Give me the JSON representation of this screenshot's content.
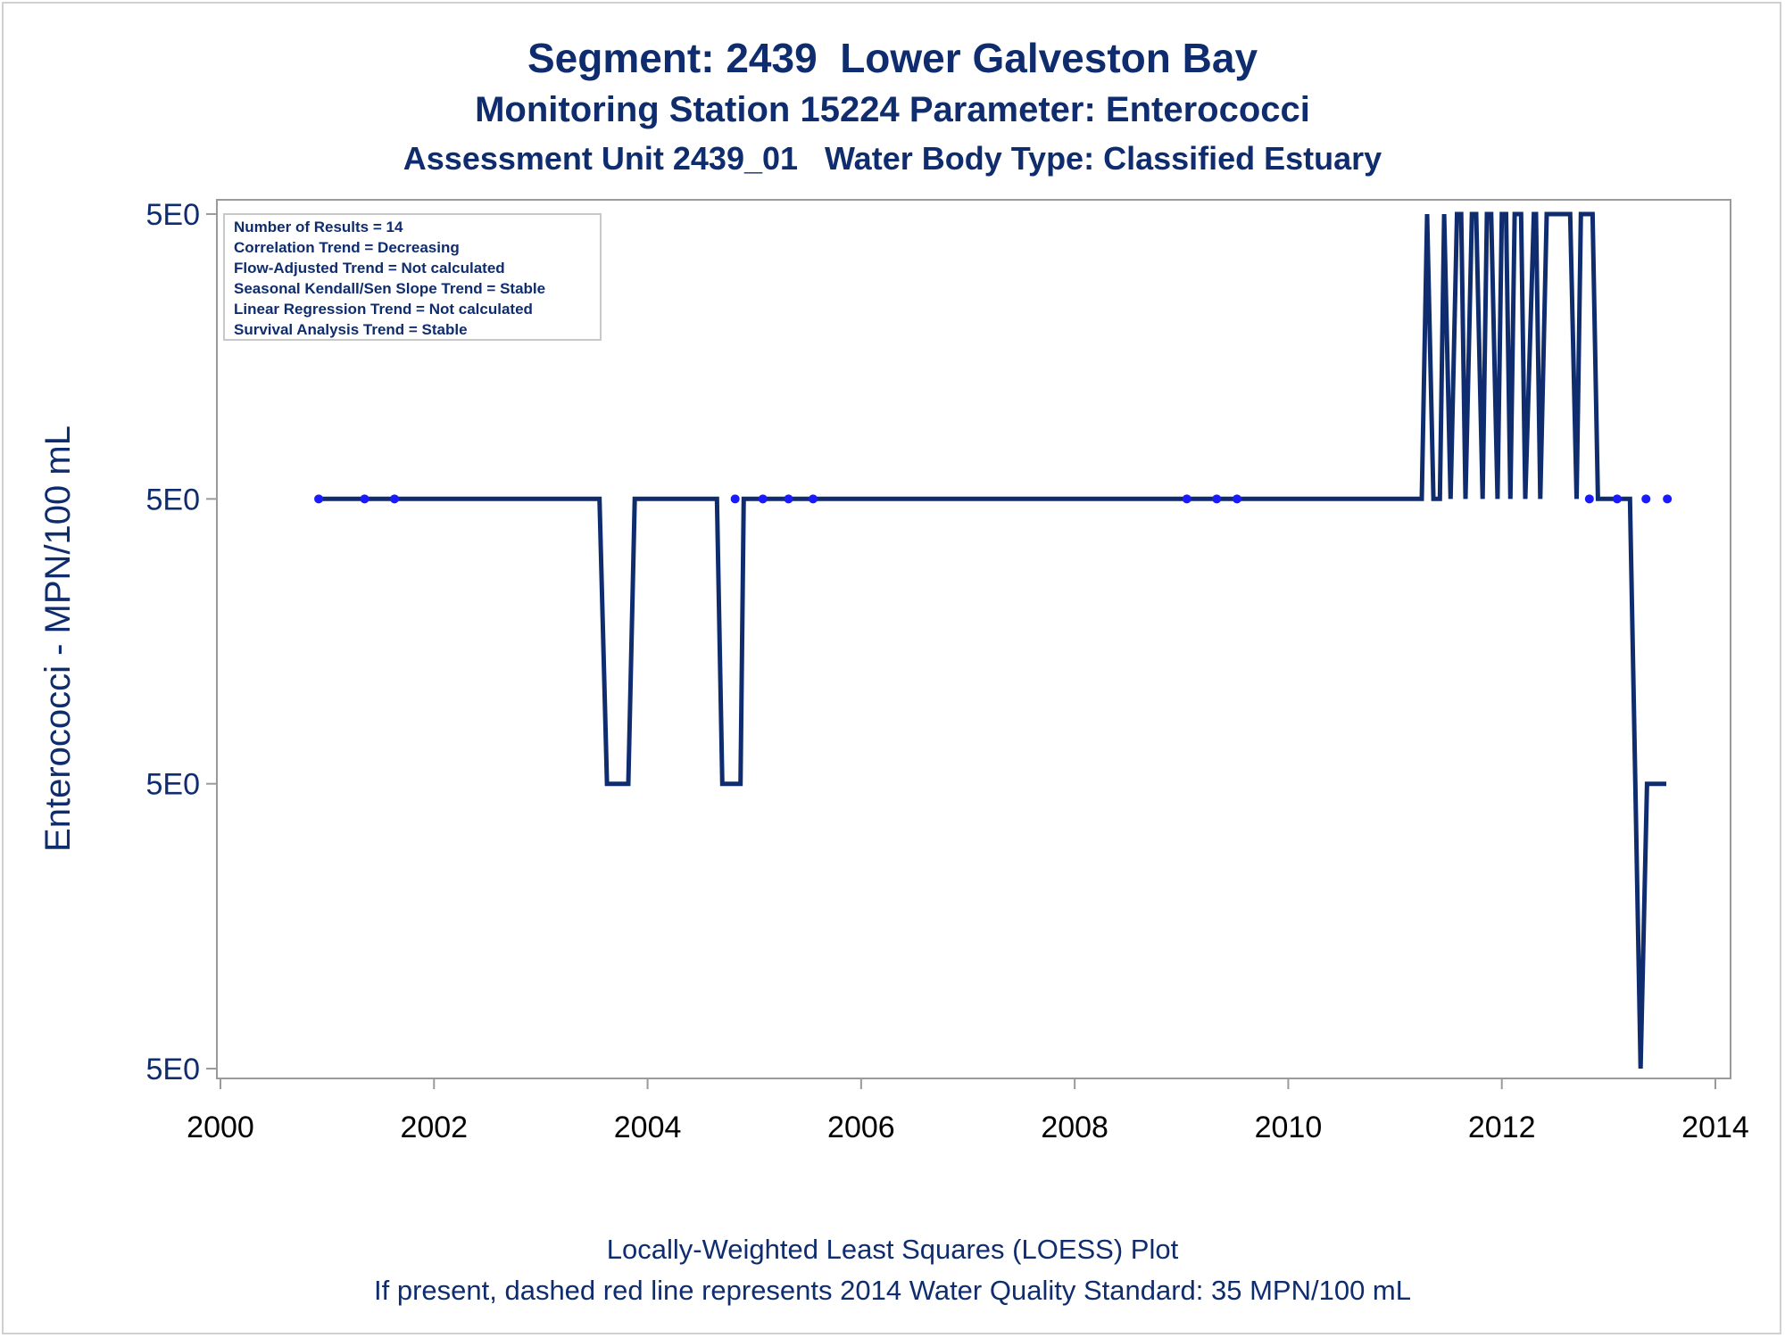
{
  "titles": [
    "Segment: 2439  Lower Galveston Bay",
    "Monitoring Station 15224 Parameter: Enterococci",
    "Assessment Unit 2439_01   Water Body Type: Classified Estuary"
  ],
  "footer": [
    "Locally-Weighted Least Squares (LOESS) Plot",
    "If present, dashed red line represents 2014 Water Quality Standard: 35 MPN/100 mL"
  ],
  "stats_box": [
    "Number of Results = 14",
    "Correlation Trend = Decreasing",
    "Flow-Adjusted Trend = Not calculated",
    "Seasonal Kendall/Sen Slope Trend = Stable",
    "Linear Regression Trend = Not calculated",
    "Survival Analysis Trend = Stable"
  ],
  "chart_data": {
    "type": "line",
    "title": "Segment: 2439  Lower Galveston Bay",
    "xlabel": "",
    "ylabel": "Enterococci - MPN/100 mL",
    "xlim": [
      2000,
      2014
    ],
    "x_ticks": [
      2000,
      2002,
      2004,
      2006,
      2008,
      2010,
      2012,
      2014
    ],
    "y_tick_labels": [
      "5E0",
      "5E0",
      "5E0",
      "5E0"
    ],
    "ylim": [
      0,
      3
    ],
    "y_tick_values": [
      0,
      1,
      2,
      3
    ],
    "grid": false,
    "colors": {
      "line": "#0f2d6e",
      "points": "#1a1aff",
      "text": "#0f2d6e"
    },
    "series": [
      {
        "type": "line",
        "x": [
          2000.92,
          2003.55,
          2003.62,
          2003.82,
          2003.88,
          2004.65,
          2004.7,
          2004.87,
          2004.9,
          2011.25,
          2011.3,
          2011.36,
          2011.42,
          2011.46,
          2011.52,
          2011.58,
          2011.62,
          2011.66,
          2011.72,
          2011.76,
          2011.82,
          2011.86,
          2011.9,
          2011.96,
          2012.0,
          2012.04,
          2012.08,
          2012.12,
          2012.18,
          2012.22,
          2012.3,
          2012.32,
          2012.36,
          2012.42,
          2012.64,
          2012.7,
          2012.74,
          2012.85,
          2012.9,
          2012.94,
          2013.2,
          2013.25,
          2013.3,
          2013.36,
          2013.44,
          2013.54
        ],
        "y": [
          2,
          2,
          1,
          1,
          2,
          2,
          1,
          1,
          2,
          2,
          3,
          2,
          2,
          3,
          2,
          3,
          3,
          2,
          3,
          3,
          2,
          3,
          3,
          2,
          3,
          3,
          2,
          3,
          3,
          2,
          3,
          3,
          2,
          3,
          3,
          2,
          3,
          3,
          2,
          2,
          2,
          1,
          0,
          1,
          1,
          1
        ]
      },
      {
        "type": "scatter",
        "x": [
          2000.92,
          2001.35,
          2001.63,
          2004.82,
          2005.08,
          2005.32,
          2005.55,
          2009.05,
          2009.33,
          2009.52,
          2012.82,
          2013.08,
          2013.35,
          2013.55
        ],
        "y": [
          2,
          2,
          2,
          2,
          2,
          2,
          2,
          2,
          2,
          2,
          2,
          2,
          2,
          2
        ]
      }
    ]
  }
}
